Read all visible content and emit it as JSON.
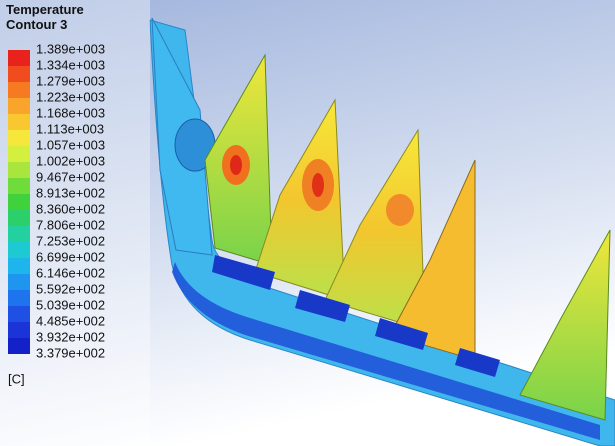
{
  "legend": {
    "title": "Temperature",
    "subtitle": "Contour 3",
    "labels": [
      "1.389e+003",
      "1.334e+003",
      "1.279e+003",
      "1.223e+003",
      "1.168e+003",
      "1.113e+003",
      "1.057e+003",
      "1.002e+003",
      "9.467e+002",
      "8.913e+002",
      "8.360e+002",
      "7.806e+002",
      "7.253e+002",
      "6.699e+002",
      "6.146e+002",
      "5.592e+002",
      "5.039e+002",
      "4.485e+002",
      "3.932e+002",
      "3.379e+002"
    ],
    "unit": "[C]"
  }
}
